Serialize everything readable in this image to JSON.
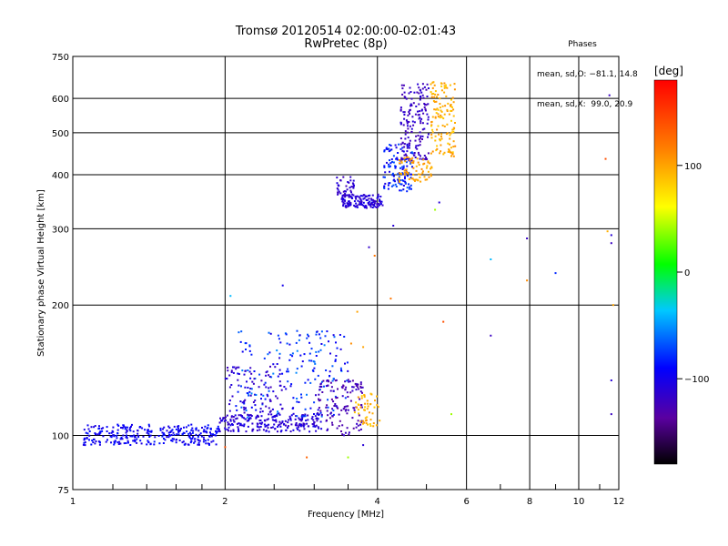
{
  "chart_data": {
    "type": "scatter",
    "title": "Tromsø 20120514 02:00:00-02:01:43",
    "subtitle": "RwPretec (8p)",
    "xlabel": "Frequency [MHz]",
    "ylabel": "Stationary phase Virtual Height [km]",
    "x_scale": "log",
    "y_scale": "log",
    "xlim": [
      1,
      12
    ],
    "ylim": [
      75,
      750
    ],
    "x_ticks": [
      1,
      2,
      4,
      6,
      8,
      10,
      12
    ],
    "x_tick_labels": [
      "1",
      "2",
      "4",
      "6",
      "8",
      "10",
      "12"
    ],
    "x_minor_ticks": [
      1.2,
      1.4,
      1.6,
      1.8,
      2.5,
      3,
      3.5,
      5,
      7,
      9,
      11
    ],
    "y_ticks": [
      75,
      100,
      200,
      300,
      400,
      500,
      600,
      750
    ],
    "y_tick_labels": [
      "75",
      "100",
      "200",
      "300",
      "400",
      "500",
      "600",
      "750"
    ],
    "grid": true,
    "phase_info": {
      "heading": "Phases",
      "line1": "mean, sd,O: −81.1, 14.8",
      "line2": "mean, sd,X:  99.0, 20.9"
    },
    "colorbar": {
      "label": "[deg]",
      "range": [
        -180,
        180
      ],
      "ticks": [
        100,
        0,
        -100
      ],
      "tick_labels": [
        "100",
        "0",
        "−100"
      ]
    },
    "clusters": [
      {
        "x": [
          1.05,
          1.95
        ],
        "y": [
          95,
          106
        ],
        "n": 300,
        "phase": -95,
        "spread": 12
      },
      {
        "x": [
          1.95,
          3.1
        ],
        "y": [
          102,
          112
        ],
        "n": 220,
        "phase": -110,
        "spread": 12
      },
      {
        "x": [
          2.1,
          3.5
        ],
        "y": [
          110,
          175
        ],
        "n": 200,
        "phase": -80,
        "spread": 28
      },
      {
        "x": [
          2.0,
          2.6
        ],
        "y": [
          112,
          145
        ],
        "n": 80,
        "phase": -115,
        "spread": 10
      },
      {
        "x": [
          3.0,
          3.75
        ],
        "y": [
          100,
          135
        ],
        "n": 130,
        "phase": -125,
        "spread": 12
      },
      {
        "x": [
          3.6,
          4.05
        ],
        "y": [
          105,
          125
        ],
        "n": 50,
        "phase": 95,
        "spread": 15
      },
      {
        "x": [
          3.4,
          4.1
        ],
        "y": [
          335,
          360
        ],
        "n": 140,
        "phase": -110,
        "spread": 12
      },
      {
        "x": [
          3.3,
          3.6
        ],
        "y": [
          355,
          395
        ],
        "n": 40,
        "phase": -115,
        "spread": 10
      },
      {
        "x": [
          4.1,
          4.7
        ],
        "y": [
          365,
          470
        ],
        "n": 120,
        "phase": -85,
        "spread": 20
      },
      {
        "x": [
          4.45,
          5.05
        ],
        "y": [
          430,
          650
        ],
        "n": 160,
        "phase": -118,
        "spread": 10
      },
      {
        "x": [
          4.4,
          5.15
        ],
        "y": [
          385,
          440
        ],
        "n": 70,
        "phase": 100,
        "spread": 12
      },
      {
        "x": [
          5.1,
          5.7
        ],
        "y": [
          440,
          660
        ],
        "n": 130,
        "phase": 95,
        "spread": 15
      }
    ],
    "scattered_points": [
      {
        "x": 2.6,
        "y": 222,
        "phase": -100
      },
      {
        "x": 2.05,
        "y": 210,
        "phase": -40
      },
      {
        "x": 3.85,
        "y": 272,
        "phase": -115
      },
      {
        "x": 4.3,
        "y": 305,
        "phase": -110
      },
      {
        "x": 4.25,
        "y": 207,
        "phase": 120
      },
      {
        "x": 3.65,
        "y": 193,
        "phase": 100
      },
      {
        "x": 5.4,
        "y": 183,
        "phase": 140
      },
      {
        "x": 6.7,
        "y": 255,
        "phase": -40
      },
      {
        "x": 6.7,
        "y": 170,
        "phase": -120
      },
      {
        "x": 7.9,
        "y": 285,
        "phase": -120
      },
      {
        "x": 7.9,
        "y": 228,
        "phase": 110
      },
      {
        "x": 9.0,
        "y": 237,
        "phase": -80
      },
      {
        "x": 5.6,
        "y": 112,
        "phase": 40
      },
      {
        "x": 3.75,
        "y": 95,
        "phase": -110
      },
      {
        "x": 3.5,
        "y": 89,
        "phase": 40
      },
      {
        "x": 2.9,
        "y": 89,
        "phase": 130
      },
      {
        "x": 2.0,
        "y": 94,
        "phase": 140
      },
      {
        "x": 11.5,
        "y": 610,
        "phase": -120
      },
      {
        "x": 11.3,
        "y": 435,
        "phase": 140
      },
      {
        "x": 11.6,
        "y": 278,
        "phase": -120
      },
      {
        "x": 11.6,
        "y": 290,
        "phase": -110
      },
      {
        "x": 11.4,
        "y": 296,
        "phase": 95
      },
      {
        "x": 11.6,
        "y": 134,
        "phase": -110
      },
      {
        "x": 11.6,
        "y": 112,
        "phase": -120
      },
      {
        "x": 11.7,
        "y": 200,
        "phase": 100
      },
      {
        "x": 5.2,
        "y": 332,
        "phase": 40
      },
      {
        "x": 5.3,
        "y": 345,
        "phase": -110
      },
      {
        "x": 3.75,
        "y": 160,
        "phase": 100
      },
      {
        "x": 3.55,
        "y": 163,
        "phase": 110
      },
      {
        "x": 3.95,
        "y": 260,
        "phase": 120
      }
    ]
  }
}
